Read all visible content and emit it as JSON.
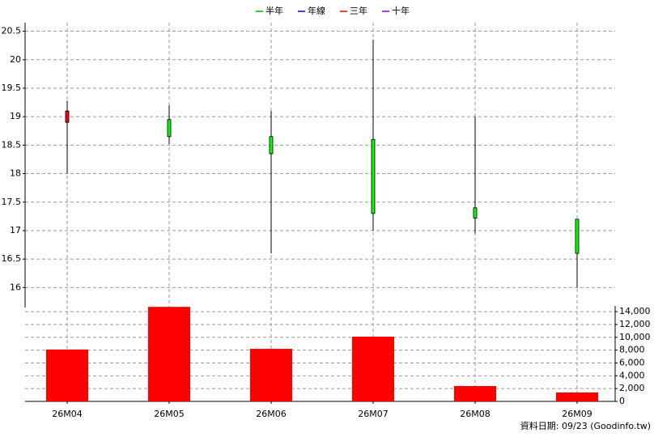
{
  "chart_data": {
    "type": "candlestick",
    "legend": [
      {
        "name": "半年",
        "color": "#00b000"
      },
      {
        "name": "年線",
        "color": "#0000ff"
      },
      {
        "name": "三年",
        "color": "#ff0000"
      },
      {
        "name": "十年",
        "color": "#8000ff"
      }
    ],
    "categories": [
      "26M04",
      "26M05",
      "26M06",
      "26M07",
      "26M08",
      "26M09"
    ],
    "open": [
      18.9,
      18.95,
      18.65,
      18.6,
      17.4,
      17.2
    ],
    "high": [
      19.28,
      19.2,
      19.1,
      20.35,
      19.0,
      17.2
    ],
    "low": [
      18.0,
      18.52,
      16.6,
      17.0,
      16.95,
      16.0
    ],
    "close": [
      19.1,
      18.65,
      18.35,
      17.3,
      17.22,
      16.6
    ],
    "up_color": "#ff0000",
    "down_color": "#00ff00",
    "ylim": [
      15.65,
      20.65
    ],
    "yticks": [
      16,
      16.5,
      17,
      17.5,
      18,
      18.5,
      19,
      19.5,
      20,
      20.5
    ],
    "volume": {
      "values": [
        8100,
        14750,
        8200,
        10100,
        2400,
        1400
      ],
      "color": "#ff0000"
    },
    "y2lim": [
      0,
      14900
    ],
    "y2ticks": [
      0,
      {
        "value": 2000,
        "label": "2,000"
      },
      {
        "value": 4000,
        "label": "4,000"
      },
      {
        "value": 6000,
        "label": "6,000"
      },
      {
        "value": 8000,
        "label": "8,000"
      },
      {
        "value": 10000,
        "label": "10,000"
      },
      {
        "value": 12000,
        "label": "12,000"
      },
      {
        "value": 14000,
        "label": "14,000"
      }
    ],
    "grid": true,
    "note": "資料日期: 09/23  (Goodinfo.tw)"
  }
}
